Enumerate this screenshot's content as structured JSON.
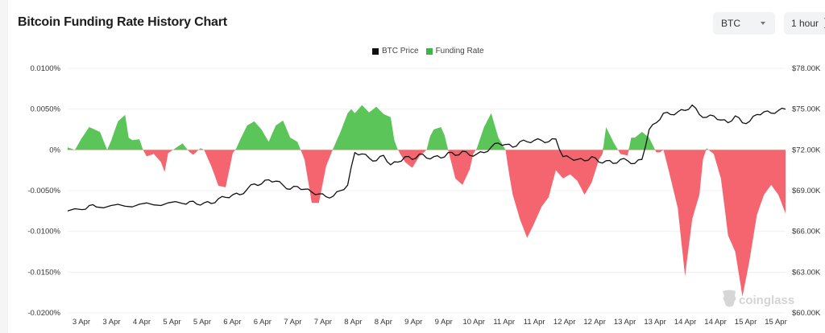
{
  "header": {
    "title": "Bitcoin Funding Rate History Chart",
    "coin_select": {
      "value": "BTC",
      "icon": "caret-down-icon"
    },
    "interval_select": {
      "value": "1 hour",
      "icon": "up-down-arrows-icon"
    }
  },
  "legend": [
    {
      "label": "BTC Price",
      "color": "#111111"
    },
    {
      "label": "Funding Rate",
      "color": "#3cb64a"
    }
  ],
  "watermark": "coinglass",
  "colors": {
    "positive": "#5cc55a",
    "negative": "#f46570",
    "price": "#111111",
    "grid": "#f0f0f0"
  },
  "chart_data": {
    "type": "area+line",
    "title": "Bitcoin Funding Rate History Chart",
    "xlabel": "",
    "ylabel_left": "Funding Rate",
    "ylabel_right": "BTC Price",
    "left_axis": {
      "ticks": [
        "0.0100%",
        "0.0050%",
        "0%",
        "-0.0050%",
        "-0.0100%",
        "-0.0150%",
        "-0.0200%"
      ],
      "range": [
        -0.02,
        0.01
      ]
    },
    "right_axis": {
      "ticks": [
        "$78.00K",
        "$75.00K",
        "$72.00K",
        "$69.00K",
        "$66.00K",
        "$63.00K",
        "$60.00K"
      ],
      "range": [
        60000,
        78000
      ]
    },
    "x_ticks": [
      "3 Apr",
      "3 Apr",
      "4 Apr",
      "5 Apr",
      "5 Apr",
      "6 Apr",
      "6 Apr",
      "7 Apr",
      "7 Apr",
      "8 Apr",
      "8 Apr",
      "9 Apr",
      "9 Apr",
      "10 Apr",
      "11 Apr",
      "11 Apr",
      "12 Apr",
      "12 Apr",
      "13 Apr",
      "13 Apr",
      "14 Apr",
      "14 Apr",
      "15 Apr",
      "15 Apr"
    ],
    "grid": true,
    "legend_position": "top-center",
    "series": [
      {
        "name": "Funding Rate",
        "unit": "%",
        "x_frac": [
          0.0,
          0.01,
          0.02,
          0.03,
          0.045,
          0.055,
          0.06,
          0.07,
          0.08,
          0.085,
          0.09,
          0.1,
          0.105,
          0.11,
          0.12,
          0.13,
          0.135,
          0.14,
          0.15,
          0.16,
          0.17,
          0.175,
          0.18,
          0.185,
          0.19,
          0.2,
          0.21,
          0.22,
          0.23,
          0.235,
          0.24,
          0.25,
          0.26,
          0.27,
          0.28,
          0.29,
          0.3,
          0.31,
          0.32,
          0.33,
          0.34,
          0.35,
          0.36,
          0.37,
          0.38,
          0.39,
          0.395,
          0.4,
          0.41,
          0.42,
          0.43,
          0.44,
          0.45,
          0.455,
          0.46,
          0.47,
          0.48,
          0.49,
          0.5,
          0.505,
          0.51,
          0.52,
          0.525,
          0.53,
          0.54,
          0.55,
          0.56,
          0.565,
          0.57,
          0.58,
          0.59,
          0.6,
          0.61,
          0.615,
          0.62,
          0.63,
          0.64,
          0.65,
          0.66,
          0.67,
          0.68,
          0.69,
          0.7,
          0.71,
          0.72,
          0.73,
          0.74,
          0.745,
          0.75,
          0.76,
          0.77,
          0.78,
          0.785,
          0.79,
          0.8,
          0.81,
          0.82,
          0.825,
          0.83,
          0.84,
          0.85,
          0.86,
          0.87,
          0.88,
          0.885,
          0.89,
          0.9,
          0.91,
          0.92,
          0.93,
          0.94,
          0.95,
          0.96,
          0.97,
          0.98,
          0.99,
          1.0
        ],
        "values": [
          0.0003,
          0.0,
          0.0015,
          0.0028,
          0.0022,
          0.0,
          0.001,
          0.0035,
          0.0043,
          0.0015,
          0.0012,
          0.0013,
          0.0,
          -0.0008,
          -0.0005,
          -0.0015,
          -0.0027,
          -0.0004,
          0.0002,
          0.0008,
          -0.0003,
          -0.0006,
          -0.0002,
          0.0002,
          0.0,
          -0.002,
          -0.0044,
          -0.0046,
          -0.0004,
          0.0002,
          0.0012,
          0.003,
          0.0035,
          0.0025,
          0.001,
          0.003,
          0.0036,
          0.0015,
          0.001,
          -0.0012,
          -0.0065,
          -0.0065,
          -0.002,
          0.0002,
          0.0022,
          0.0045,
          0.005,
          0.0045,
          0.0055,
          0.0046,
          0.0053,
          0.0044,
          0.004,
          0.0012,
          0.0,
          -0.0015,
          -0.0022,
          -0.0008,
          0.0,
          0.0017,
          0.0025,
          0.0028,
          0.0018,
          0.0,
          -0.0035,
          -0.0043,
          -0.0024,
          -0.0005,
          0.0002,
          0.0028,
          0.0045,
          0.0015,
          0.0,
          -0.003,
          -0.0055,
          -0.0085,
          -0.0108,
          -0.009,
          -0.007,
          -0.0058,
          -0.0025,
          -0.0035,
          -0.003,
          -0.0038,
          -0.0055,
          -0.004,
          -0.0012,
          -0.0005,
          0.0028,
          0.001,
          -0.0005,
          -0.0007,
          0.0015,
          0.0015,
          0.0022,
          0.0015,
          -0.0003,
          -0.0003,
          0.0,
          -0.0035,
          -0.0072,
          -0.0155,
          -0.0085,
          -0.0055,
          -0.0012,
          0.0002,
          -0.0005,
          -0.0035,
          -0.0105,
          -0.0125,
          -0.018,
          -0.0135,
          -0.008,
          -0.0055,
          -0.0043,
          -0.0055,
          -0.0078,
          -0.0058,
          -0.0058
        ]
      },
      {
        "name": "BTC Price",
        "unit": "USD",
        "x_frac": [
          0.0,
          0.02,
          0.03,
          0.04,
          0.06,
          0.08,
          0.1,
          0.12,
          0.14,
          0.16,
          0.17,
          0.18,
          0.19,
          0.2,
          0.21,
          0.22,
          0.23,
          0.24,
          0.25,
          0.26,
          0.27,
          0.28,
          0.29,
          0.3,
          0.31,
          0.32,
          0.33,
          0.34,
          0.35,
          0.36,
          0.37,
          0.38,
          0.39,
          0.4,
          0.41,
          0.42,
          0.43,
          0.44,
          0.45,
          0.46,
          0.47,
          0.48,
          0.49,
          0.5,
          0.51,
          0.52,
          0.53,
          0.54,
          0.55,
          0.56,
          0.57,
          0.58,
          0.59,
          0.6,
          0.61,
          0.62,
          0.63,
          0.64,
          0.65,
          0.66,
          0.67,
          0.68,
          0.69,
          0.7,
          0.71,
          0.72,
          0.73,
          0.74,
          0.75,
          0.76,
          0.77,
          0.78,
          0.79,
          0.8,
          0.81,
          0.82,
          0.83,
          0.84,
          0.85,
          0.86,
          0.87,
          0.88,
          0.89,
          0.9,
          0.91,
          0.92,
          0.93,
          0.94,
          0.95,
          0.96,
          0.97,
          0.98,
          0.99,
          1.0
        ],
        "values": [
          67500,
          67600,
          67900,
          67800,
          67900,
          67850,
          68000,
          67950,
          68100,
          68050,
          68200,
          68000,
          68100,
          68050,
          68400,
          68500,
          68700,
          68700,
          69100,
          69500,
          69500,
          69800,
          69700,
          69400,
          69100,
          69300,
          69100,
          68900,
          68750,
          68550,
          68600,
          69000,
          69400,
          71800,
          71700,
          71400,
          71200,
          71600,
          70900,
          71100,
          71500,
          71300,
          71700,
          71400,
          71500,
          71400,
          71800,
          71600,
          71900,
          71600,
          71700,
          71800,
          72200,
          72500,
          72400,
          72200,
          72600,
          72600,
          72700,
          72700,
          72600,
          72800,
          71500,
          71400,
          71300,
          71200,
          71500,
          71100,
          71200,
          71000,
          71300,
          71200,
          71000,
          71300,
          73500,
          74000,
          74700,
          74600,
          74800,
          74900,
          75300,
          74600,
          74400,
          74500,
          74200,
          74000,
          74500,
          74000,
          74100,
          74600,
          74800,
          74700,
          74900,
          75000
        ]
      }
    ]
  }
}
